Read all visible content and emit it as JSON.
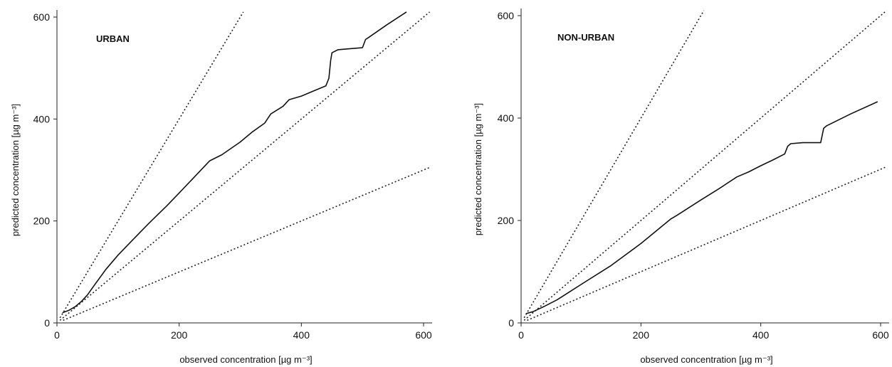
{
  "chart_data": [
    {
      "type": "line",
      "panel_label": "URBAN",
      "xlabel": "observed concentration [µg m⁻³]",
      "ylabel": "predicted concentration [µg m⁻³]",
      "xlim": [
        0,
        600
      ],
      "ylim": [
        0,
        600
      ],
      "x_ticks": [
        "0",
        "200",
        "400",
        "600"
      ],
      "y_ticks": [
        "0",
        "200",
        "400",
        "600"
      ],
      "grid": false,
      "reference_lines": [
        {
          "slope": 2,
          "style": "dotted",
          "x_range": [
            5,
            305
          ]
        },
        {
          "slope": 1,
          "style": "dotted",
          "x_range": [
            5,
            610
          ]
        },
        {
          "slope": 0.5,
          "style": "dotted",
          "x_range": [
            10,
            610
          ]
        }
      ],
      "series": [
        {
          "style": "solid",
          "x": [
            9,
            20,
            30,
            40,
            50,
            60,
            80,
            100,
            120,
            150,
            180,
            200,
            220,
            250,
            270,
            300,
            320,
            340,
            350,
            370,
            380,
            400,
            420,
            440,
            445,
            448,
            450,
            460,
            480,
            500,
            505,
            510,
            540,
            572
          ],
          "y": [
            20,
            25,
            32,
            42,
            55,
            72,
            105,
            133,
            158,
            195,
            230,
            255,
            280,
            318,
            330,
            355,
            375,
            392,
            410,
            425,
            438,
            445,
            455,
            465,
            480,
            515,
            530,
            536,
            538,
            540,
            556,
            560,
            585,
            610
          ]
        }
      ]
    },
    {
      "type": "line",
      "panel_label": "NON-URBAN",
      "xlabel": "observed concentration [µg m⁻³]",
      "ylabel": "predicted concentration [µg m⁻³]",
      "xlim": [
        0,
        600
      ],
      "ylim": [
        0,
        600
      ],
      "x_ticks": [
        "0",
        "200",
        "400",
        "600"
      ],
      "y_ticks": [
        "0",
        "200",
        "400",
        "600"
      ],
      "grid": false,
      "reference_lines": [
        {
          "slope": 2,
          "style": "dotted",
          "x_range": [
            5,
            305
          ]
        },
        {
          "slope": 1,
          "style": "dotted",
          "x_range": [
            5,
            610
          ]
        },
        {
          "slope": 0.5,
          "style": "dotted",
          "x_range": [
            10,
            610
          ]
        }
      ],
      "series": [
        {
          "style": "solid",
          "x": [
            8,
            20,
            40,
            60,
            80,
            100,
            150,
            200,
            250,
            260,
            300,
            330,
            360,
            380,
            400,
            420,
            440,
            445,
            450,
            470,
            500,
            505,
            510,
            550,
            595
          ],
          "y": [
            18,
            22,
            33,
            45,
            60,
            75,
            112,
            155,
            203,
            210,
            240,
            262,
            285,
            295,
            307,
            318,
            330,
            345,
            350,
            352,
            352,
            380,
            385,
            408,
            432
          ]
        }
      ]
    }
  ]
}
